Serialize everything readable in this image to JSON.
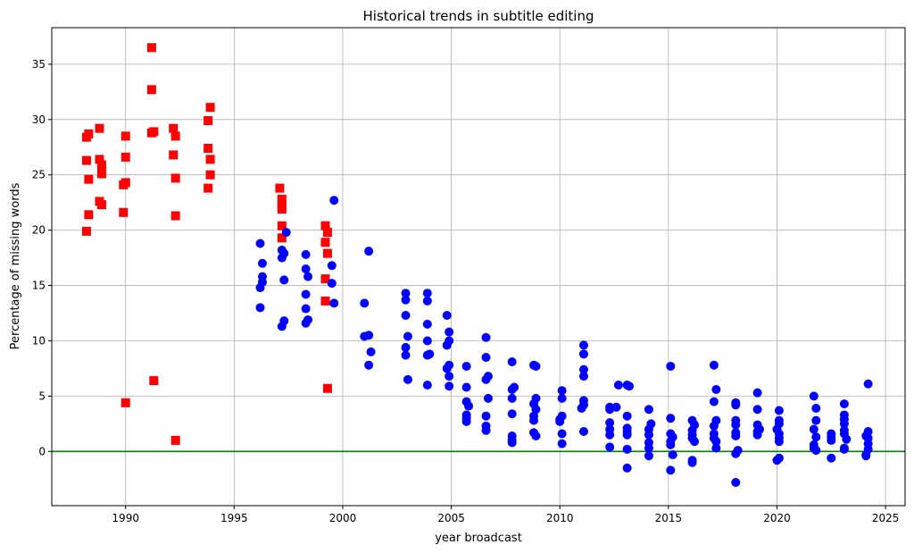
{
  "chart_data": {
    "type": "scatter",
    "title": "Historical trends in subtitle editing",
    "xlabel": "year broadcast",
    "ylabel": "Percentage of missing words",
    "xlim": [
      1986.6,
      2025.9
    ],
    "ylim": [
      -4.9,
      38.3
    ],
    "xticks": [
      1990,
      1995,
      2000,
      2005,
      2010,
      2015,
      2020,
      2025
    ],
    "yticks": [
      0,
      5,
      10,
      15,
      20,
      25,
      30,
      35
    ],
    "grid": true,
    "reference_line": {
      "y": 0,
      "color": "#008000"
    },
    "series": [
      {
        "marker": "square",
        "color": "#ff0000",
        "points": [
          [
            1988.2,
            28.4
          ],
          [
            1988.3,
            28.7
          ],
          [
            1988.2,
            26.3
          ],
          [
            1988.3,
            24.6
          ],
          [
            1988.3,
            21.4
          ],
          [
            1988.2,
            19.9
          ],
          [
            1988.8,
            29.2
          ],
          [
            1988.8,
            26.4
          ],
          [
            1988.9,
            25.9
          ],
          [
            1988.9,
            25.1
          ],
          [
            1988.8,
            22.6
          ],
          [
            1988.9,
            22.3
          ],
          [
            1990.0,
            28.5
          ],
          [
            1990.0,
            26.6
          ],
          [
            1990.0,
            24.3
          ],
          [
            1989.9,
            24.1
          ],
          [
            1989.9,
            21.6
          ],
          [
            1990.0,
            4.4
          ],
          [
            1991.2,
            36.5
          ],
          [
            1991.2,
            32.7
          ],
          [
            1991.3,
            28.9
          ],
          [
            1991.2,
            28.8
          ],
          [
            1991.3,
            6.4
          ],
          [
            1992.2,
            29.2
          ],
          [
            1992.3,
            28.5
          ],
          [
            1992.2,
            26.8
          ],
          [
            1992.3,
            24.7
          ],
          [
            1992.3,
            21.3
          ],
          [
            1992.3,
            1.0
          ],
          [
            1993.9,
            31.1
          ],
          [
            1993.8,
            29.9
          ],
          [
            1993.8,
            27.4
          ],
          [
            1993.9,
            26.4
          ],
          [
            1993.9,
            25.0
          ],
          [
            1993.8,
            23.8
          ],
          [
            1997.1,
            23.8
          ],
          [
            1997.2,
            22.8
          ],
          [
            1997.2,
            22.2
          ],
          [
            1997.2,
            21.9
          ],
          [
            1997.2,
            20.4
          ],
          [
            1997.2,
            19.3
          ],
          [
            1999.2,
            20.4
          ],
          [
            1999.3,
            19.8
          ],
          [
            1999.2,
            18.9
          ],
          [
            1999.3,
            17.9
          ],
          [
            1999.2,
            15.6
          ],
          [
            1999.2,
            13.6
          ],
          [
            1999.3,
            5.7
          ]
        ]
      },
      {
        "marker": "circle",
        "color": "#0000ff",
        "points": [
          [
            1996.2,
            18.8
          ],
          [
            1996.3,
            17.0
          ],
          [
            1996.3,
            15.8
          ],
          [
            1996.3,
            15.3
          ],
          [
            1996.2,
            14.8
          ],
          [
            1996.2,
            13.0
          ],
          [
            1997.4,
            19.8
          ],
          [
            1997.2,
            18.2
          ],
          [
            1997.3,
            17.9
          ],
          [
            1997.2,
            17.5
          ],
          [
            1997.3,
            15.5
          ],
          [
            1997.3,
            11.8
          ],
          [
            1997.2,
            11.3
          ],
          [
            1998.3,
            17.8
          ],
          [
            1998.3,
            16.5
          ],
          [
            1998.4,
            15.8
          ],
          [
            1998.3,
            14.2
          ],
          [
            1998.3,
            12.9
          ],
          [
            1998.4,
            11.9
          ],
          [
            1998.3,
            11.6
          ],
          [
            1999.6,
            22.7
          ],
          [
            1999.5,
            16.8
          ],
          [
            1999.5,
            15.2
          ],
          [
            1999.6,
            13.4
          ],
          [
            2001.2,
            18.1
          ],
          [
            2001.0,
            13.4
          ],
          [
            2001.0,
            10.4
          ],
          [
            2001.2,
            10.5
          ],
          [
            2001.3,
            9.0
          ],
          [
            2001.2,
            7.8
          ],
          [
            2002.9,
            14.3
          ],
          [
            2002.9,
            13.7
          ],
          [
            2002.9,
            12.3
          ],
          [
            2003.0,
            10.4
          ],
          [
            2002.9,
            9.4
          ],
          [
            2002.9,
            8.7
          ],
          [
            2003.0,
            6.5
          ],
          [
            2003.9,
            14.3
          ],
          [
            2003.9,
            13.6
          ],
          [
            2003.9,
            11.5
          ],
          [
            2003.9,
            10.0
          ],
          [
            2004.0,
            8.8
          ],
          [
            2003.9,
            8.7
          ],
          [
            2003.9,
            6.0
          ],
          [
            2004.8,
            12.3
          ],
          [
            2004.9,
            10.8
          ],
          [
            2004.9,
            10.0
          ],
          [
            2004.8,
            9.6
          ],
          [
            2004.9,
            7.8
          ],
          [
            2004.8,
            7.5
          ],
          [
            2004.9,
            6.8
          ],
          [
            2004.9,
            5.9
          ],
          [
            2005.7,
            7.7
          ],
          [
            2005.7,
            5.8
          ],
          [
            2005.7,
            4.5
          ],
          [
            2005.8,
            4.1
          ],
          [
            2005.7,
            3.3
          ],
          [
            2005.7,
            3.0
          ],
          [
            2005.7,
            2.7
          ],
          [
            2006.6,
            10.3
          ],
          [
            2006.6,
            8.5
          ],
          [
            2006.7,
            6.8
          ],
          [
            2006.6,
            6.5
          ],
          [
            2006.7,
            4.8
          ],
          [
            2006.6,
            3.2
          ],
          [
            2006.6,
            2.3
          ],
          [
            2006.6,
            1.9
          ],
          [
            2007.8,
            8.1
          ],
          [
            2007.9,
            5.8
          ],
          [
            2007.8,
            5.6
          ],
          [
            2007.8,
            4.8
          ],
          [
            2007.8,
            3.4
          ],
          [
            2007.8,
            1.4
          ],
          [
            2007.8,
            1.0
          ],
          [
            2007.8,
            0.8
          ],
          [
            2008.8,
            7.8
          ],
          [
            2008.9,
            7.7
          ],
          [
            2008.9,
            4.8
          ],
          [
            2008.8,
            4.3
          ],
          [
            2008.9,
            3.8
          ],
          [
            2008.8,
            3.2
          ],
          [
            2008.8,
            2.8
          ],
          [
            2008.8,
            1.7
          ],
          [
            2008.9,
            1.4
          ],
          [
            2010.1,
            5.5
          ],
          [
            2010.1,
            4.8
          ],
          [
            2010.1,
            3.2
          ],
          [
            2010.0,
            2.9
          ],
          [
            2010.0,
            2.7
          ],
          [
            2010.1,
            1.6
          ],
          [
            2010.1,
            0.7
          ],
          [
            2011.1,
            9.6
          ],
          [
            2011.1,
            8.8
          ],
          [
            2011.1,
            7.4
          ],
          [
            2011.1,
            6.8
          ],
          [
            2011.1,
            4.6
          ],
          [
            2011.1,
            4.2
          ],
          [
            2011.0,
            3.9
          ],
          [
            2011.1,
            1.8
          ],
          [
            2012.3,
            4.0
          ],
          [
            2012.3,
            3.8
          ],
          [
            2012.3,
            2.6
          ],
          [
            2012.3,
            2.0
          ],
          [
            2012.3,
            1.5
          ],
          [
            2012.3,
            0.4
          ],
          [
            2012.7,
            6.0
          ],
          [
            2012.6,
            4.0
          ],
          [
            2013.1,
            6.0
          ],
          [
            2013.2,
            5.9
          ],
          [
            2013.1,
            3.2
          ],
          [
            2013.1,
            2.1
          ],
          [
            2013.1,
            1.8
          ],
          [
            2013.1,
            1.5
          ],
          [
            2013.1,
            0.2
          ],
          [
            2013.1,
            -1.5
          ],
          [
            2014.1,
            3.8
          ],
          [
            2014.2,
            2.5
          ],
          [
            2014.1,
            2.0
          ],
          [
            2014.1,
            1.5
          ],
          [
            2014.1,
            0.8
          ],
          [
            2014.1,
            0.3
          ],
          [
            2014.1,
            -0.4
          ],
          [
            2015.1,
            7.7
          ],
          [
            2015.1,
            3.0
          ],
          [
            2015.1,
            1.6
          ],
          [
            2015.2,
            1.3
          ],
          [
            2015.1,
            0.9
          ],
          [
            2015.1,
            0.6
          ],
          [
            2015.2,
            -0.3
          ],
          [
            2015.1,
            -1.7
          ],
          [
            2016.1,
            2.8
          ],
          [
            2016.2,
            2.4
          ],
          [
            2016.1,
            1.9
          ],
          [
            2016.1,
            1.5
          ],
          [
            2016.1,
            1.2
          ],
          [
            2016.2,
            0.9
          ],
          [
            2016.1,
            -0.8
          ],
          [
            2016.1,
            -1.0
          ],
          [
            2017.1,
            7.8
          ],
          [
            2017.2,
            5.6
          ],
          [
            2017.1,
            4.5
          ],
          [
            2017.2,
            2.8
          ],
          [
            2017.1,
            2.3
          ],
          [
            2017.1,
            1.6
          ],
          [
            2017.1,
            1.2
          ],
          [
            2017.2,
            0.9
          ],
          [
            2017.2,
            0.3
          ],
          [
            2018.1,
            4.4
          ],
          [
            2018.1,
            4.2
          ],
          [
            2018.1,
            2.8
          ],
          [
            2018.1,
            2.4
          ],
          [
            2018.1,
            1.7
          ],
          [
            2018.1,
            1.4
          ],
          [
            2018.2,
            0.1
          ],
          [
            2018.1,
            -0.2
          ],
          [
            2018.1,
            -2.8
          ],
          [
            2019.1,
            5.3
          ],
          [
            2019.1,
            3.8
          ],
          [
            2019.1,
            2.4
          ],
          [
            2019.2,
            2.0
          ],
          [
            2019.1,
            1.8
          ],
          [
            2019.1,
            1.5
          ],
          [
            2020.1,
            3.7
          ],
          [
            2020.1,
            2.8
          ],
          [
            2020.1,
            2.5
          ],
          [
            2020.0,
            2.0
          ],
          [
            2020.1,
            1.6
          ],
          [
            2020.1,
            1.2
          ],
          [
            2020.1,
            0.9
          ],
          [
            2020.1,
            -0.6
          ],
          [
            2020.0,
            -0.8
          ],
          [
            2021.7,
            5.0
          ],
          [
            2021.8,
            3.9
          ],
          [
            2021.8,
            2.8
          ],
          [
            2021.7,
            2.0
          ],
          [
            2021.8,
            1.3
          ],
          [
            2021.7,
            0.6
          ],
          [
            2021.7,
            0.3
          ],
          [
            2021.8,
            0.1
          ],
          [
            2022.5,
            1.6
          ],
          [
            2022.5,
            1.3
          ],
          [
            2022.5,
            1.0
          ],
          [
            2022.5,
            -0.6
          ],
          [
            2023.1,
            4.3
          ],
          [
            2023.1,
            3.3
          ],
          [
            2023.1,
            2.9
          ],
          [
            2023.1,
            2.5
          ],
          [
            2023.1,
            1.9
          ],
          [
            2023.1,
            1.6
          ],
          [
            2023.2,
            1.1
          ],
          [
            2023.1,
            0.3
          ],
          [
            2023.1,
            0.2
          ],
          [
            2024.2,
            6.1
          ],
          [
            2024.2,
            1.8
          ],
          [
            2024.1,
            1.4
          ],
          [
            2024.2,
            1.2
          ],
          [
            2024.2,
            0.7
          ],
          [
            2024.2,
            0.2
          ],
          [
            2024.1,
            -0.3
          ],
          [
            2024.1,
            -0.4
          ]
        ]
      }
    ]
  }
}
